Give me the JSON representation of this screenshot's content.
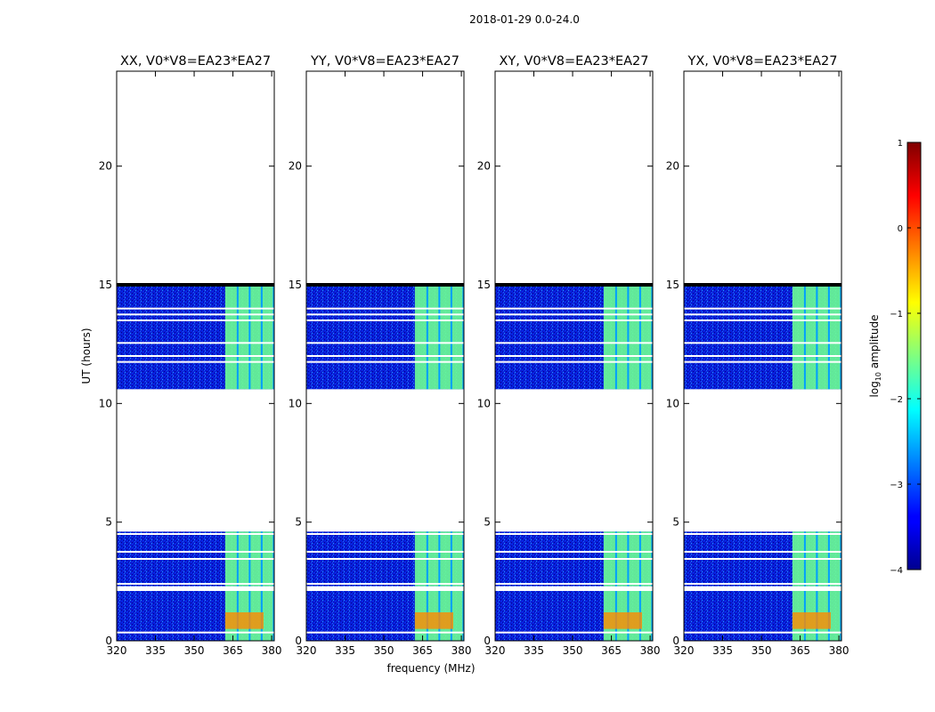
{
  "suptitle": "2018-01-29 0.0-24.0",
  "xlabel": "frequency (MHz)",
  "ylabel": "UT (hours)",
  "colorbar": {
    "label": "log",
    "label_sub": "10",
    "label_rest": " amplitude",
    "range": [
      -4,
      1
    ],
    "ticks": [
      -4,
      -3,
      -2,
      -1,
      0,
      1
    ],
    "tick_labels": [
      "−4",
      "−3",
      "−2",
      "−1",
      "0",
      "1"
    ]
  },
  "chart_data": {
    "type": "heatmap",
    "colormap": "jet",
    "xlim": [
      320,
      381
    ],
    "ylim": [
      0,
      24
    ],
    "xticks": [
      320,
      335,
      350,
      365,
      380
    ],
    "yticks": [
      0,
      5,
      10,
      15,
      20
    ],
    "panels": [
      {
        "title": "XX, V0*V8=EA23*EA27"
      },
      {
        "title": "YY, V0*V8=EA23*EA27"
      },
      {
        "title": "XY, V0*V8=EA23*EA27"
      },
      {
        "title": "YX, V0*V8=EA23*EA27"
      }
    ],
    "data_ranges_ut": [
      [
        0.0,
        2.1
      ],
      [
        2.3,
        4.6
      ],
      [
        10.6,
        15.0
      ]
    ],
    "noise_level_log10": -3.4,
    "strong_band_mhz": [
      362,
      381
    ],
    "strong_band_level_log10": -1.6,
    "white_gap_times_ut": [
      0.35,
      2.4,
      3.45,
      3.75,
      4.5,
      11.75,
      12.0,
      12.55,
      13.5,
      13.75,
      14.0
    ]
  }
}
